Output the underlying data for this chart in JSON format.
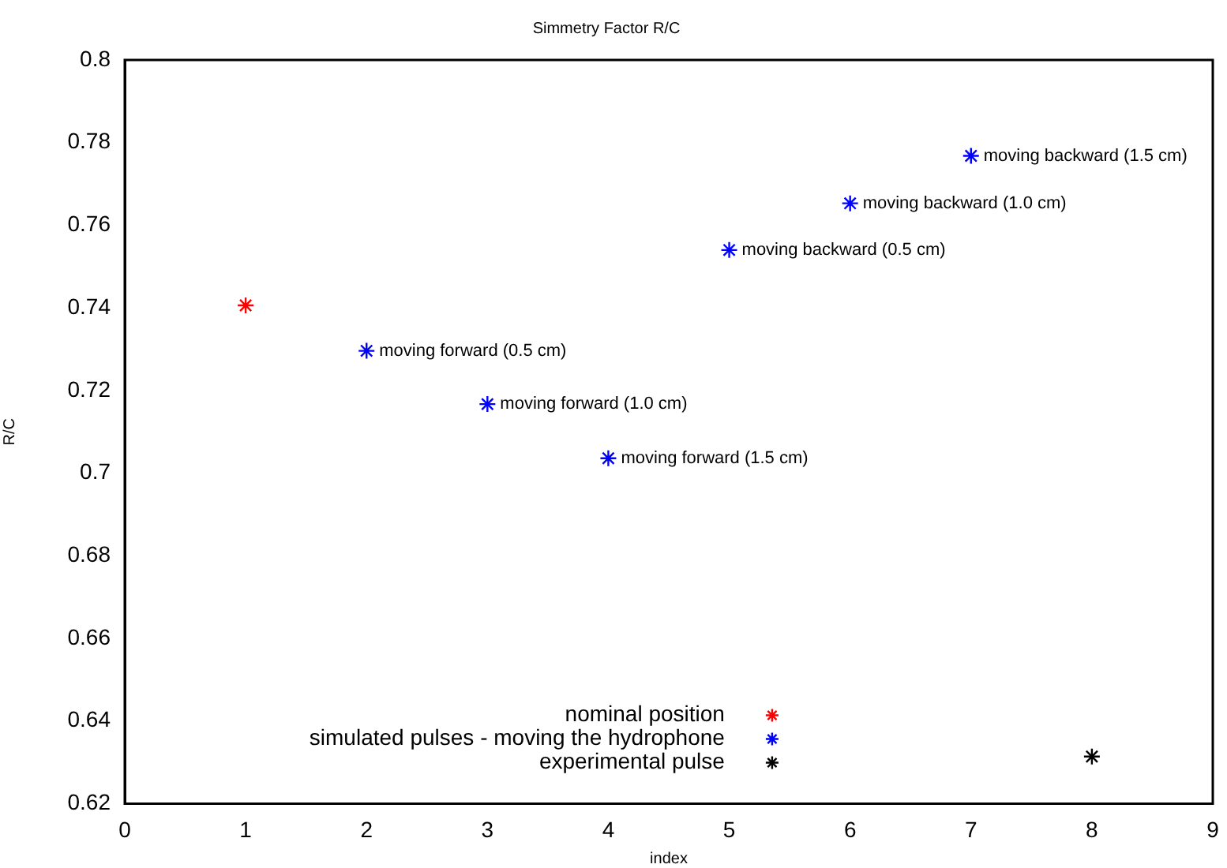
{
  "chart_data": {
    "type": "scatter",
    "title": "Simmetry Factor R/C",
    "xlabel": "index",
    "ylabel": "R/C",
    "xlim": [
      0,
      9
    ],
    "xticks": [
      0,
      1,
      2,
      3,
      4,
      5,
      6,
      7,
      8,
      9
    ],
    "ylim": [
      0.62,
      0.8
    ],
    "yticks": [
      0.62,
      0.64,
      0.66,
      0.68,
      0.7,
      0.72,
      0.74,
      0.76,
      0.78,
      0.8
    ],
    "grid": false,
    "legend": "bottom",
    "marker": "cross",
    "series": [
      {
        "name": "nominal position",
        "color": "#ff0000",
        "x": [
          1
        ],
        "values": [
          0.7406
        ]
      },
      {
        "name": "simulated pulses - moving the hydrophone",
        "color": "#0000ff",
        "x": [
          2,
          3,
          4,
          5,
          6,
          7
        ],
        "values": [
          0.7296,
          0.7167,
          0.7036,
          0.754,
          0.7653,
          0.7768
        ]
      },
      {
        "name": "experimental pulse",
        "color": "#000000",
        "x": [
          8
        ],
        "values": [
          0.6314
        ]
      }
    ],
    "annotations": [
      {
        "text": "moving forward (0.5 cm)",
        "x": 2,
        "y": 0.7296
      },
      {
        "text": "moving forward (1.0 cm)",
        "x": 3,
        "y": 0.7167
      },
      {
        "text": "moving forward (1.5 cm)",
        "x": 4,
        "y": 0.7036
      },
      {
        "text": "moving backward (0.5 cm)",
        "x": 5,
        "y": 0.754
      },
      {
        "text": "moving backward (1.0 cm)",
        "x": 6,
        "y": 0.7653
      },
      {
        "text": "moving backward (1.5 cm)",
        "x": 7,
        "y": 0.7768
      }
    ]
  }
}
